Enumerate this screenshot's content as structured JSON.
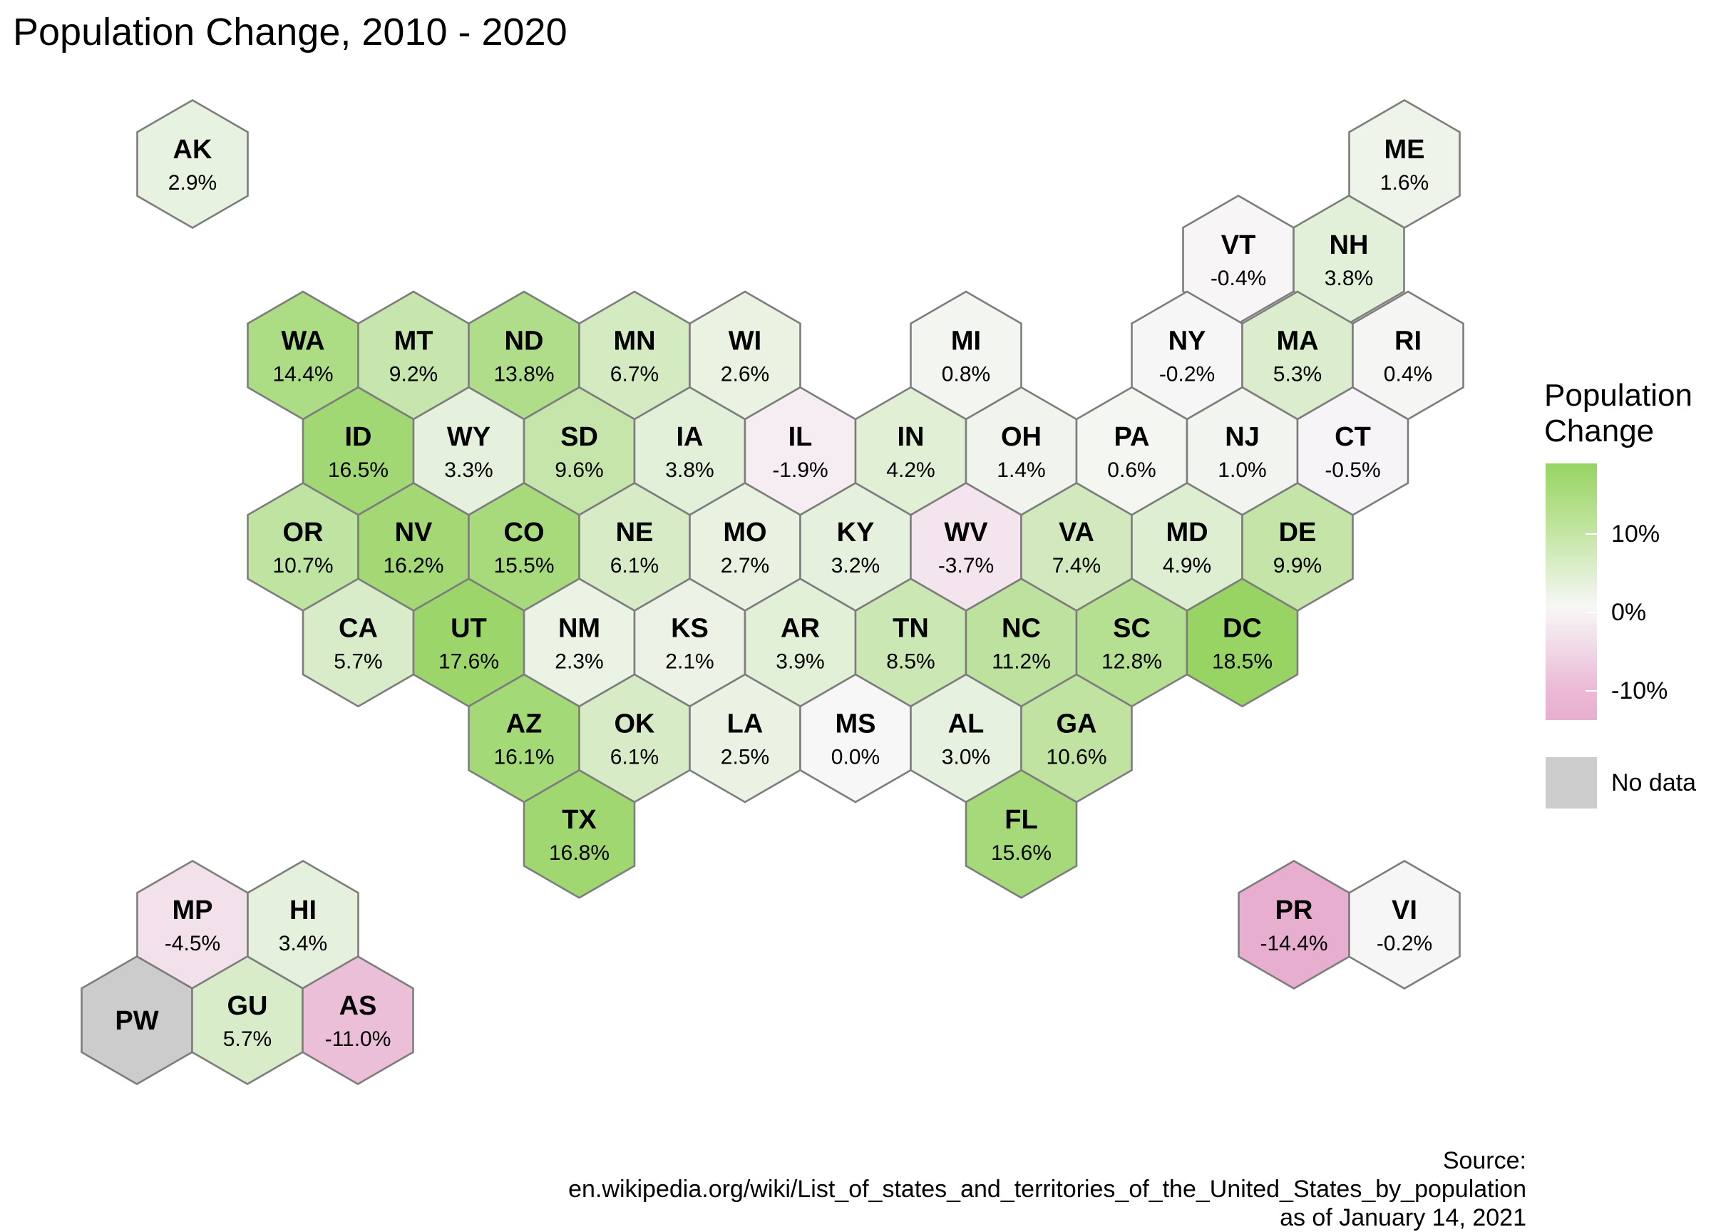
{
  "title": "Population Change, 2010 - 2020",
  "legend": {
    "title_line1": "Population",
    "title_line2": "Change",
    "ticks": [
      "10%",
      "0%",
      "-10%"
    ],
    "nodata_label": "No data",
    "scale": {
      "min_value": -14.4,
      "max_value": 18.5,
      "low_color": "#e8aed0",
      "mid_color": "#f7f7f7",
      "high_color": "#97d463"
    },
    "nodata_color": "#cccccc"
  },
  "source": {
    "line1": "Source:",
    "line2": "en.wikipedia.org/wiki/List_of_states_and_territories_of_the_United_States_by_population",
    "line3": "as of January 14, 2021"
  },
  "chart_data": {
    "type": "hex-tile choropleth",
    "value_unit": "%",
    "tiles": [
      {
        "abbr": "AK",
        "label": "2.9%",
        "value": 2.9
      },
      {
        "abbr": "ME",
        "label": "1.6%",
        "value": 1.6
      },
      {
        "abbr": "VT",
        "label": "-0.4%",
        "value": -0.4
      },
      {
        "abbr": "NH",
        "label": "3.8%",
        "value": 3.8
      },
      {
        "abbr": "WA",
        "label": "14.4%",
        "value": 14.4
      },
      {
        "abbr": "MT",
        "label": "9.2%",
        "value": 9.2
      },
      {
        "abbr": "ND",
        "label": "13.8%",
        "value": 13.8
      },
      {
        "abbr": "MN",
        "label": "6.7%",
        "value": 6.7
      },
      {
        "abbr": "WI",
        "label": "2.6%",
        "value": 2.6
      },
      {
        "abbr": "MI",
        "label": "0.8%",
        "value": 0.8
      },
      {
        "abbr": "NY",
        "label": "-0.2%",
        "value": -0.2
      },
      {
        "abbr": "MA",
        "label": "5.3%",
        "value": 5.3
      },
      {
        "abbr": "RI",
        "label": "0.4%",
        "value": 0.4
      },
      {
        "abbr": "ID",
        "label": "16.5%",
        "value": 16.5
      },
      {
        "abbr": "WY",
        "label": "3.3%",
        "value": 3.3
      },
      {
        "abbr": "SD",
        "label": "9.6%",
        "value": 9.6
      },
      {
        "abbr": "IA",
        "label": "3.8%",
        "value": 3.8
      },
      {
        "abbr": "IL",
        "label": "-1.9%",
        "value": -1.9
      },
      {
        "abbr": "IN",
        "label": "4.2%",
        "value": 4.2
      },
      {
        "abbr": "OH",
        "label": "1.4%",
        "value": 1.4
      },
      {
        "abbr": "PA",
        "label": "0.6%",
        "value": 0.6
      },
      {
        "abbr": "NJ",
        "label": "1.0%",
        "value": 1.0
      },
      {
        "abbr": "CT",
        "label": "-0.5%",
        "value": -0.5
      },
      {
        "abbr": "OR",
        "label": "10.7%",
        "value": 10.7
      },
      {
        "abbr": "NV",
        "label": "16.2%",
        "value": 16.2
      },
      {
        "abbr": "CO",
        "label": "15.5%",
        "value": 15.5
      },
      {
        "abbr": "NE",
        "label": "6.1%",
        "value": 6.1
      },
      {
        "abbr": "MO",
        "label": "2.7%",
        "value": 2.7
      },
      {
        "abbr": "KY",
        "label": "3.2%",
        "value": 3.2
      },
      {
        "abbr": "WV",
        "label": "-3.7%",
        "value": -3.7
      },
      {
        "abbr": "VA",
        "label": "7.4%",
        "value": 7.4
      },
      {
        "abbr": "MD",
        "label": "4.9%",
        "value": 4.9
      },
      {
        "abbr": "DE",
        "label": "9.9%",
        "value": 9.9
      },
      {
        "abbr": "CA",
        "label": "5.7%",
        "value": 5.7
      },
      {
        "abbr": "UT",
        "label": "17.6%",
        "value": 17.6
      },
      {
        "abbr": "NM",
        "label": "2.3%",
        "value": 2.3
      },
      {
        "abbr": "KS",
        "label": "2.1%",
        "value": 2.1
      },
      {
        "abbr": "AR",
        "label": "3.9%",
        "value": 3.9
      },
      {
        "abbr": "TN",
        "label": "8.5%",
        "value": 8.5
      },
      {
        "abbr": "NC",
        "label": "11.2%",
        "value": 11.2
      },
      {
        "abbr": "SC",
        "label": "12.8%",
        "value": 12.8
      },
      {
        "abbr": "DC",
        "label": "18.5%",
        "value": 18.5
      },
      {
        "abbr": "AZ",
        "label": "16.1%",
        "value": 16.1
      },
      {
        "abbr": "OK",
        "label": "6.1%",
        "value": 6.1
      },
      {
        "abbr": "LA",
        "label": "2.5%",
        "value": 2.5
      },
      {
        "abbr": "MS",
        "label": "0.0%",
        "value": 0.0
      },
      {
        "abbr": "AL",
        "label": "3.0%",
        "value": 3.0
      },
      {
        "abbr": "GA",
        "label": "10.6%",
        "value": 10.6
      },
      {
        "abbr": "TX",
        "label": "16.8%",
        "value": 16.8
      },
      {
        "abbr": "FL",
        "label": "15.6%",
        "value": 15.6
      },
      {
        "abbr": "MP",
        "label": "-4.5%",
        "value": -4.5
      },
      {
        "abbr": "HI",
        "label": "3.4%",
        "value": 3.4
      },
      {
        "abbr": "PR",
        "label": "-14.4%",
        "value": -14.4
      },
      {
        "abbr": "VI",
        "label": "-0.2%",
        "value": -0.2
      },
      {
        "abbr": "PW",
        "label": "",
        "value": null
      },
      {
        "abbr": "GU",
        "label": "5.7%",
        "value": 5.7
      },
      {
        "abbr": "AS",
        "label": "-11.0%",
        "value": -11.0
      }
    ]
  }
}
